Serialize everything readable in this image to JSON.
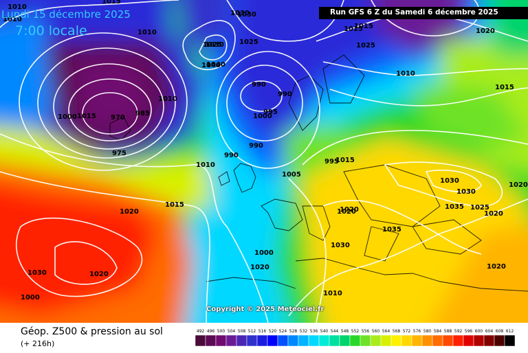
{
  "header": {
    "date_line": "Lundi 15 décembre 2025",
    "time_line": "7:00 locale",
    "run_info": "Run GFS 6 Z du Samedi 6 décembre 2025"
  },
  "footer": {
    "title": "Géop. Z500 & pression au sol",
    "forecast_hours": "(+ 216h)",
    "copyright": "Copyright © 2025 Meteociel.fr"
  },
  "legend": {
    "values": [
      "492",
      "496",
      "500",
      "504",
      "508",
      "512",
      "516",
      "520",
      "524",
      "528",
      "532",
      "536",
      "540",
      "544",
      "548",
      "552",
      "556",
      "560",
      "564",
      "568",
      "572",
      "576",
      "580",
      "584",
      "588",
      "592",
      "596",
      "600",
      "604",
      "608",
      "612"
    ],
    "colors": [
      "#4a0a3a",
      "#5c0a55",
      "#700a70",
      "#6b1a96",
      "#4b26b4",
      "#3030cc",
      "#1c1ce0",
      "#0000ff",
      "#0050ff",
      "#0088ff",
      "#00b4ff",
      "#00d8ff",
      "#00ecd8",
      "#00e0a0",
      "#00d46c",
      "#28d828",
      "#6ee228",
      "#a8ec1c",
      "#d8f000",
      "#fff000",
      "#ffd800",
      "#ffb400",
      "#ff9000",
      "#ff6c00",
      "#ff4800",
      "#ff2000",
      "#e00000",
      "#b00000",
      "#800000",
      "#4c0000",
      "#000000"
    ]
  },
  "isobar_labels": [
    {
      "text": "1010"
    },
    {
      "text": "1015"
    },
    {
      "text": "1030"
    },
    {
      "text": "1010"
    },
    {
      "text": "1025"
    },
    {
      "text": "1040"
    },
    {
      "text": "1025"
    },
    {
      "text": "1010"
    },
    {
      "text": "1000"
    },
    {
      "text": "1015"
    },
    {
      "text": "970"
    },
    {
      "text": "985"
    },
    {
      "text": "990"
    },
    {
      "text": "975"
    },
    {
      "text": "990"
    },
    {
      "text": "990"
    },
    {
      "text": "1000"
    },
    {
      "text": "995"
    },
    {
      "text": "990"
    },
    {
      "text": "995"
    },
    {
      "text": "1010"
    },
    {
      "text": "1005"
    },
    {
      "text": "1015"
    },
    {
      "text": "1015"
    },
    {
      "text": "1020"
    },
    {
      "text": "1025"
    },
    {
      "text": "1030"
    },
    {
      "text": "1020"
    },
    {
      "text": "1000"
    },
    {
      "text": "1000"
    },
    {
      "text": "1020"
    },
    {
      "text": "1030"
    },
    {
      "text": "1035"
    },
    {
      "text": "1030"
    },
    {
      "text": "1035"
    },
    {
      "text": "1030"
    },
    {
      "text": "1025"
    },
    {
      "text": "1020"
    },
    {
      "text": "1020"
    },
    {
      "text": "1020"
    },
    {
      "text": "1015"
    },
    {
      "text": "1010"
    },
    {
      "text": "1020"
    },
    {
      "text": "1015"
    },
    {
      "text": "1020"
    },
    {
      "text": "1010"
    },
    {
      "text": "1020"
    },
    {
      "text": "1010"
    },
    {
      "text": "1030"
    },
    {
      "text": "1030"
    },
    {
      "text": "1015"
    },
    {
      "text": "1040"
    }
  ]
}
